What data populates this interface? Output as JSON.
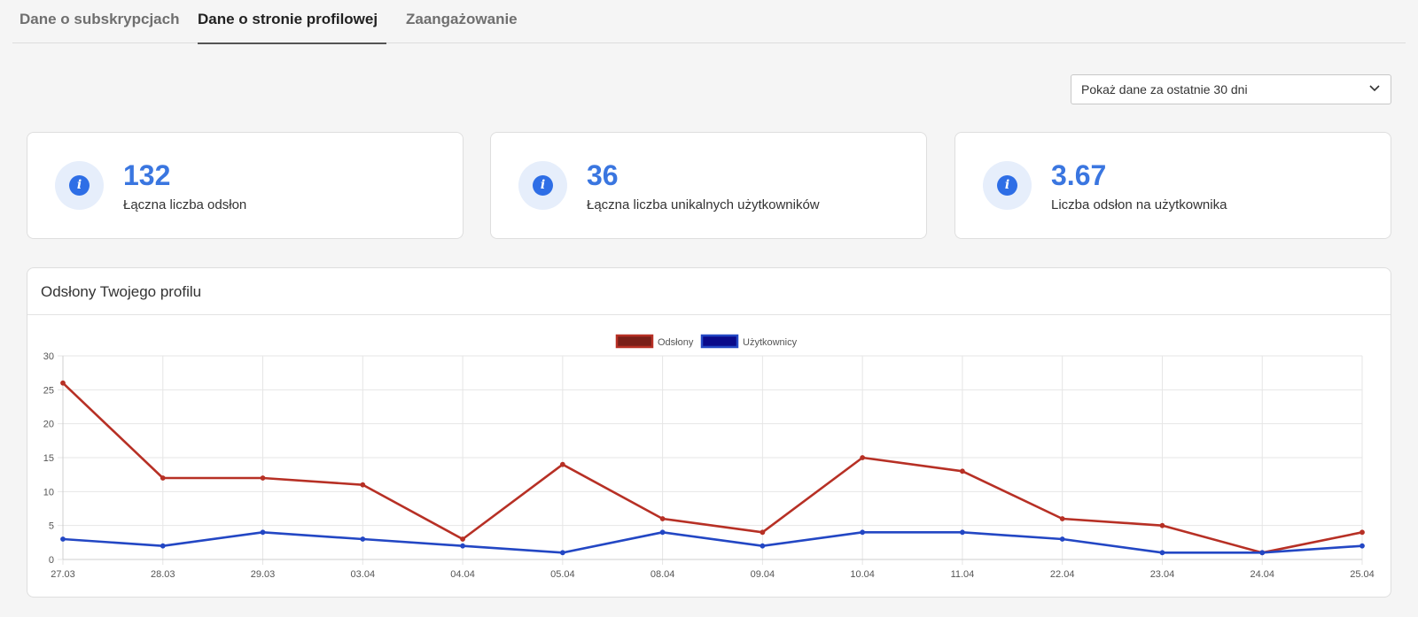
{
  "tabs": [
    {
      "label": "Dane o subskrypcjach",
      "active": false
    },
    {
      "label": "Dane o stronie profilowej",
      "active": true
    },
    {
      "label": "Zaangażowanie",
      "active": false
    }
  ],
  "period_select": {
    "value": "Pokaż dane za ostatnie 30 dni",
    "icon": "chevron-down-icon"
  },
  "stats": [
    {
      "value": "132",
      "label": "Łączna liczba odsłon",
      "icon": "info-icon"
    },
    {
      "value": "36",
      "label": "Łączna liczba unikalnych użytkowników",
      "icon": "info-icon"
    },
    {
      "value": "3.67",
      "label": "Liczba odsłon na użytkownika",
      "icon": "info-icon"
    }
  ],
  "chart_panel": {
    "title": "Odsłony Twojego profilu"
  },
  "colors": {
    "accent": "#3a76e0",
    "views": "#b73025",
    "users": "#2347c4"
  },
  "chart_data": {
    "type": "line",
    "categories": [
      "27.03",
      "28.03",
      "29.03",
      "03.04",
      "04.04",
      "05.04",
      "08.04",
      "09.04",
      "10.04",
      "11.04",
      "22.04",
      "23.04",
      "24.04",
      "25.04"
    ],
    "series": [
      {
        "name": "Odsłony",
        "color": "#b73025",
        "values": [
          26,
          12,
          12,
          11,
          3,
          14,
          6,
          4,
          15,
          13,
          6,
          5,
          1,
          4
        ]
      },
      {
        "name": "Użytkownicy",
        "color": "#2347c4",
        "values": [
          3,
          2,
          4,
          3,
          2,
          1,
          4,
          2,
          4,
          4,
          3,
          1,
          1,
          2
        ]
      }
    ],
    "ylim": [
      0,
      30
    ],
    "yticks": [
      "0",
      "5",
      "10",
      "15",
      "20",
      "25",
      "30"
    ],
    "grid": true,
    "legend": "top-center"
  }
}
